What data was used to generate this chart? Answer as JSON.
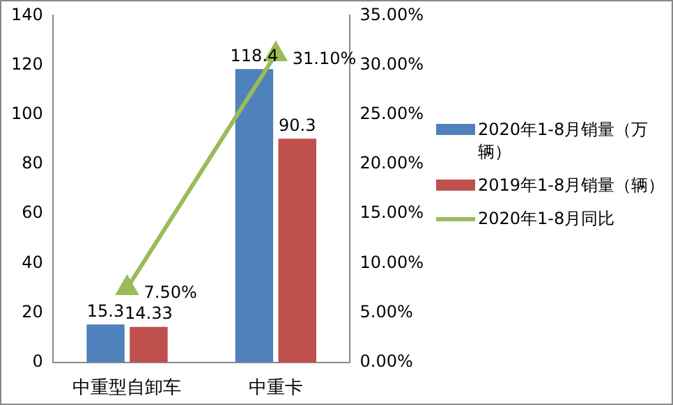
{
  "chart_data": {
    "type": "bar",
    "categories": [
      "中重型自卸车",
      "中重卡"
    ],
    "series": [
      {
        "name": "2020年1-8月销量（万辆）",
        "color": "#4f81bd",
        "values": [
          15.3,
          118.4
        ],
        "value_labels": [
          "15.3",
          "118.4"
        ]
      },
      {
        "name": "2019年1-8月销量（辆）",
        "color": "#c0504d",
        "values": [
          14.33,
          90.3
        ],
        "value_labels": [
          "14.33",
          "90.3"
        ]
      },
      {
        "name": "2020年1-8月同比",
        "type": "line",
        "axis": "y2",
        "color": "#9bbb59",
        "values": [
          7.5,
          31.1
        ],
        "value_labels": [
          "7.50%",
          "31.10%"
        ],
        "marker": "triangle"
      }
    ],
    "ylim": [
      0,
      140
    ],
    "yticks": [
      0,
      20,
      40,
      60,
      80,
      100,
      120,
      140
    ],
    "y2lim": [
      0,
      35
    ],
    "y2ticks": [
      {
        "value": 0,
        "label": "0.00%"
      },
      {
        "value": 5,
        "label": "5.00%"
      },
      {
        "value": 10,
        "label": "10.00%"
      },
      {
        "value": 15,
        "label": "15.00%"
      },
      {
        "value": 20,
        "label": "20.00%"
      },
      {
        "value": 25,
        "label": "25.00%"
      },
      {
        "value": 30,
        "label": "30.00%"
      },
      {
        "value": 35,
        "label": "35.00%"
      }
    ],
    "grid": false,
    "legend": "right"
  }
}
